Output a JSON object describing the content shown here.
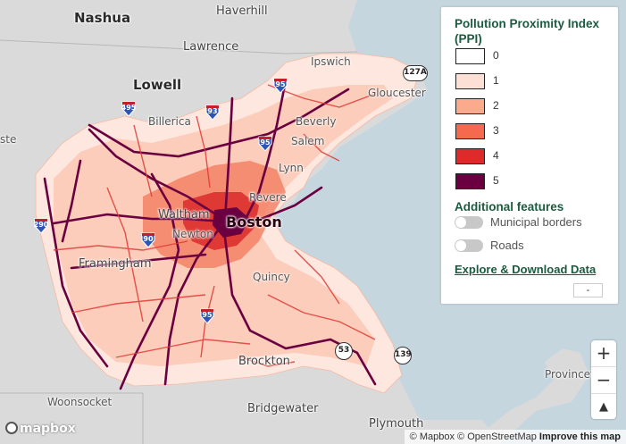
{
  "legend": {
    "title": "Pollution Proximity Index (PPI)",
    "levels": [
      {
        "label": "0",
        "color": "#ffffff"
      },
      {
        "label": "1",
        "color": "#fde0d5"
      },
      {
        "label": "2",
        "color": "#fbaa8e"
      },
      {
        "label": "3",
        "color": "#f56a4f"
      },
      {
        "label": "4",
        "color": "#dd2a2a"
      },
      {
        "label": "5",
        "color": "#6a0040"
      }
    ],
    "features_title": "Additional features",
    "features": [
      {
        "label": "Municipal borders",
        "enabled": false
      },
      {
        "label": "Roads",
        "enabled": false
      }
    ],
    "explore_link": "Explore & Download Data",
    "collapse_label": "-"
  },
  "places": {
    "nashua": "Nashua",
    "haverhill": "Haverhill",
    "lawrence": "Lawrence",
    "lowell": "Lowell",
    "ipswich": "Ipswich",
    "gloucester": "Gloucester",
    "billerica": "Billerica",
    "beverly": "Beverly",
    "salem": "Salem",
    "lynn": "Lynn",
    "revere": "Revere",
    "waltham": "Waltham",
    "boston": "Boston",
    "newton": "Newton",
    "framingham": "Framingham",
    "quincy": "Quincy",
    "brockton": "Brockton",
    "woonsocket": "Woonsocket",
    "bridgewater": "Bridgewater",
    "plymouth": "Plymouth",
    "provincetown": "Provincet",
    "edge": "ste"
  },
  "routes": {
    "i495": "495",
    "i93": "93",
    "i95a": "95",
    "i95b": "95",
    "i95c": "95",
    "i290": "290",
    "i90": "90",
    "r127a": "127A",
    "r53": "53",
    "r139": "139"
  },
  "controls": {
    "zoom_in": "+",
    "zoom_out": "−",
    "compass": "▲"
  },
  "attribution": {
    "mapbox": "© Mapbox",
    "osm": "© OpenStreetMap",
    "improve": "Improve this map",
    "logo": "mapbox"
  }
}
